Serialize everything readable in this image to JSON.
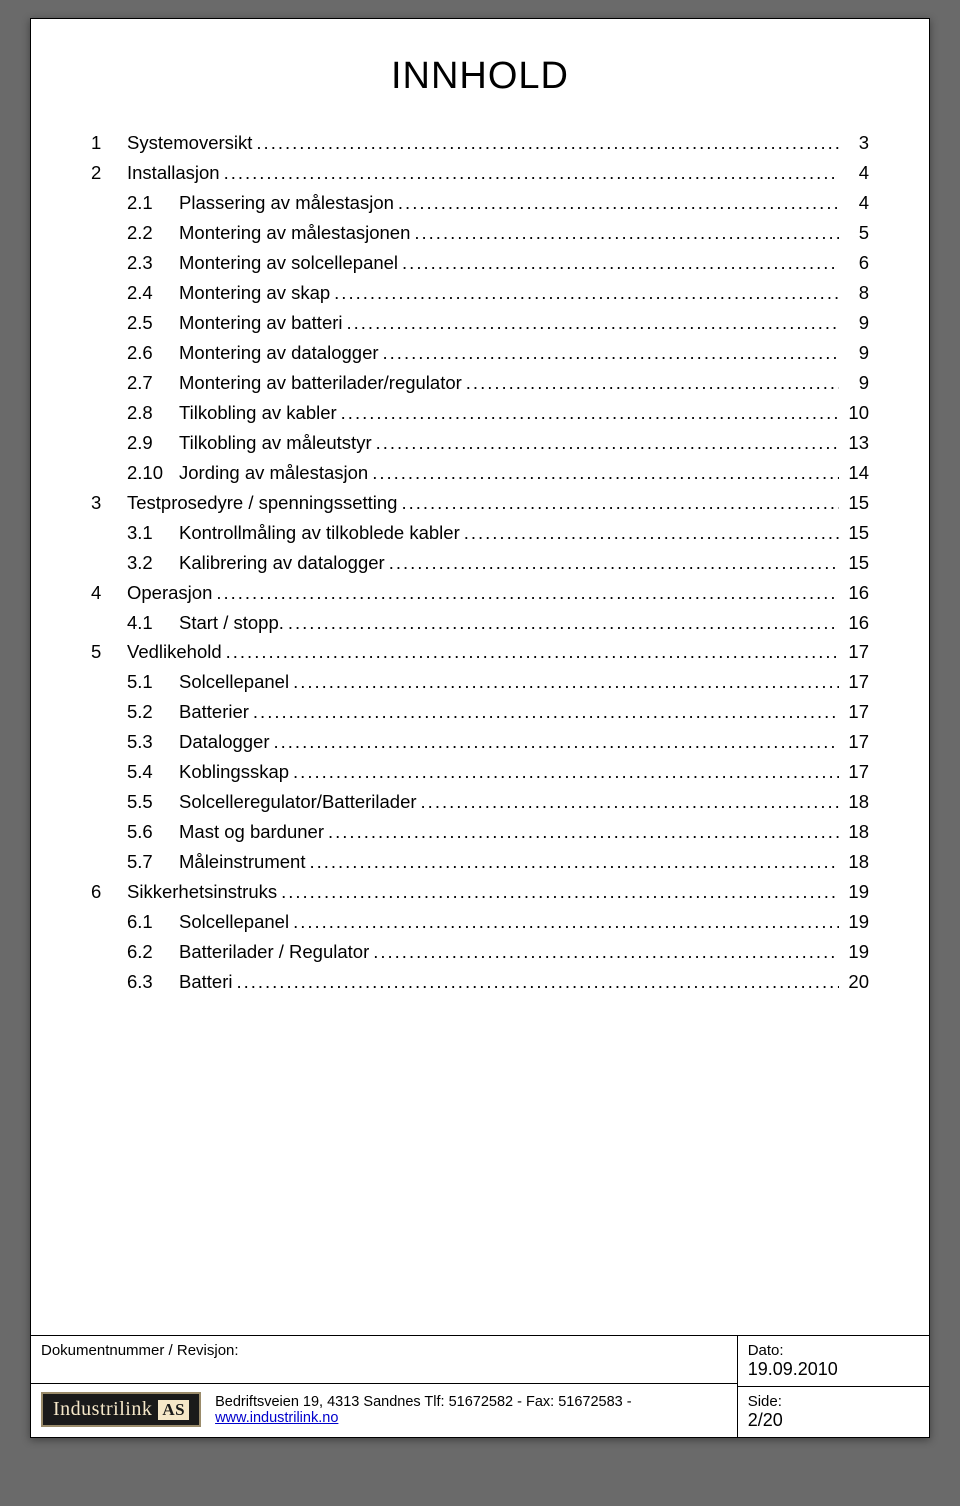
{
  "title": "INNHOLD",
  "toc": [
    {
      "level": 1,
      "num": "1",
      "label": "Systemoversikt",
      "page": "3"
    },
    {
      "level": 1,
      "num": "2",
      "label": "Installasjon",
      "page": "4"
    },
    {
      "level": 2,
      "num": "2.1",
      "label": "Plassering av målestasjon",
      "page": "4"
    },
    {
      "level": 2,
      "num": "2.2",
      "label": "Montering av målestasjonen",
      "page": "5"
    },
    {
      "level": 2,
      "num": "2.3",
      "label": "Montering av solcellepanel",
      "page": "6"
    },
    {
      "level": 2,
      "num": "2.4",
      "label": "Montering av skap",
      "page": "8"
    },
    {
      "level": 2,
      "num": "2.5",
      "label": "Montering av batteri",
      "page": "9"
    },
    {
      "level": 2,
      "num": "2.6",
      "label": "Montering av datalogger",
      "page": "9"
    },
    {
      "level": 2,
      "num": "2.7",
      "label": "Montering av batterilader/regulator",
      "page": "9"
    },
    {
      "level": 2,
      "num": "2.8",
      "label": "Tilkobling av kabler",
      "page": "10"
    },
    {
      "level": 2,
      "num": "2.9",
      "label": "Tilkobling av måleutstyr",
      "page": "13"
    },
    {
      "level": 2,
      "num": "2.10",
      "label": "Jording av målestasjon",
      "page": "14"
    },
    {
      "level": 1,
      "num": "3",
      "label": "Testprosedyre / spenningssetting",
      "page": "15"
    },
    {
      "level": 2,
      "num": "3.1",
      "label": "Kontrollmåling av tilkoblede kabler",
      "page": "15"
    },
    {
      "level": 2,
      "num": "3.2",
      "label": "Kalibrering av datalogger",
      "page": "15"
    },
    {
      "level": 1,
      "num": "4",
      "label": "Operasjon",
      "page": "16"
    },
    {
      "level": 2,
      "num": "4.1",
      "label": "Start / stopp. ",
      "page": "16"
    },
    {
      "level": 1,
      "num": "5",
      "label": "Vedlikehold",
      "page": "17"
    },
    {
      "level": 2,
      "num": "5.1",
      "label": "Solcellepanel",
      "page": "17"
    },
    {
      "level": 2,
      "num": "5.2",
      "label": "Batterier",
      "page": "17"
    },
    {
      "level": 2,
      "num": "5.3",
      "label": "Datalogger",
      "page": "17"
    },
    {
      "level": 2,
      "num": "5.4",
      "label": "Koblingsskap",
      "page": "17"
    },
    {
      "level": 2,
      "num": "5.5",
      "label": "Solcelleregulator/Batterilader",
      "page": "18"
    },
    {
      "level": 2,
      "num": "5.6",
      "label": "Mast og barduner",
      "page": "18"
    },
    {
      "level": 2,
      "num": "5.7",
      "label": "Måleinstrument",
      "page": "18"
    },
    {
      "level": 1,
      "num": "6",
      "label": "Sikkerhetsinstruks",
      "page": "19"
    },
    {
      "level": 2,
      "num": "6.1",
      "label": "Solcellepanel",
      "page": "19"
    },
    {
      "level": 2,
      "num": "6.2",
      "label": "Batterilader / Regulator",
      "page": "19"
    },
    {
      "level": 2,
      "num": "6.3",
      "label": "Batteri",
      "page": "20"
    }
  ],
  "footer": {
    "doc_label": "Dokumentnummer / Revisjon:",
    "date_label": "Dato:",
    "date_value": "19.09.2010",
    "side_label": "Side:",
    "side_value": "2/20",
    "logo_text": "Industrilink",
    "logo_suffix": "AS",
    "address_prefix": "Bedriftsveien 19, 4313 Sandnes Tlf: 51672582  -  Fax: 51672583  -  ",
    "address_link": "www.industrilink.no"
  },
  "colors": {
    "page_bg": "#ffffff",
    "outer_bg": "#6a6a6a",
    "border": "#000000",
    "link": "#0000cc",
    "logo_bg": "#1a1a1a",
    "logo_fg": "#f5e7c8"
  },
  "typography": {
    "title_fontsize_pt": 28,
    "body_fontsize_pt": 14,
    "footer_fontsize_pt": 11,
    "font_family": "Arial"
  }
}
